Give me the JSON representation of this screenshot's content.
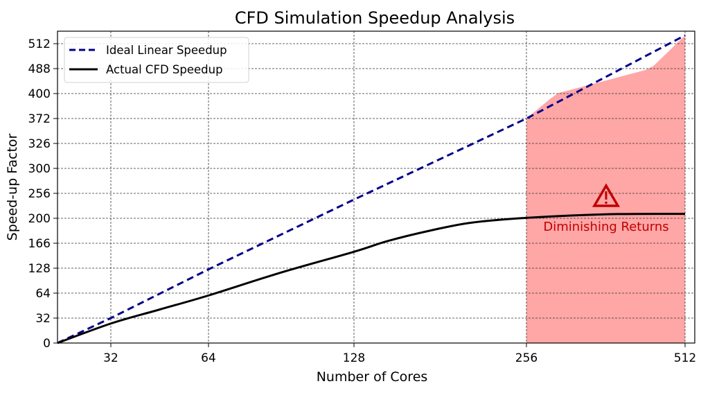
{
  "chart_data": {
    "type": "line",
    "title": "CFD Simulation Speedup Analysis",
    "xlabel": "Number of Cores",
    "ylabel": "Speed-up Factor",
    "x_ticks": [
      32,
      64,
      128,
      256,
      512
    ],
    "y_ticks": [
      0,
      32,
      64,
      128,
      166,
      200,
      256,
      300,
      326,
      372,
      400,
      488,
      512
    ],
    "x_axis_scale": "non-uniform (tick-positioned)",
    "y_axis_scale": "non-uniform (evenly spaced tick labels)",
    "grid": true,
    "legend": {
      "placement": "top-left",
      "entries": [
        {
          "label": "Ideal Linear Speedup",
          "style": "dashed",
          "color": "#00008b"
        },
        {
          "label": "Actual CFD Speedup",
          "style": "solid",
          "color": "#000000"
        }
      ]
    },
    "series": [
      {
        "name": "Ideal Linear Speedup",
        "color": "#00008b",
        "x": [
          0,
          32,
          64,
          128,
          256,
          512
        ],
        "y": [
          0,
          32,
          125,
          242,
          372,
          520
        ]
      },
      {
        "name": "Actual CFD Speedup",
        "color": "#000000",
        "x": [
          0,
          32,
          48,
          64,
          96,
          128,
          153,
          184,
          215,
          256,
          384,
          512
        ],
        "y": [
          0,
          25,
          43,
          61,
          117,
          153,
          169,
          183,
          194,
          201,
          209,
          210
        ]
      }
    ],
    "shaded_region": {
      "x_from": 256,
      "x_to": 512,
      "under_series": "Ideal Linear Speedup",
      "color": "#ffa6a6"
    },
    "annotation": {
      "text": "Diminishing Returns",
      "icon": "warning-triangle-icon",
      "color": "#c00000",
      "x": 384,
      "y": 230
    }
  }
}
